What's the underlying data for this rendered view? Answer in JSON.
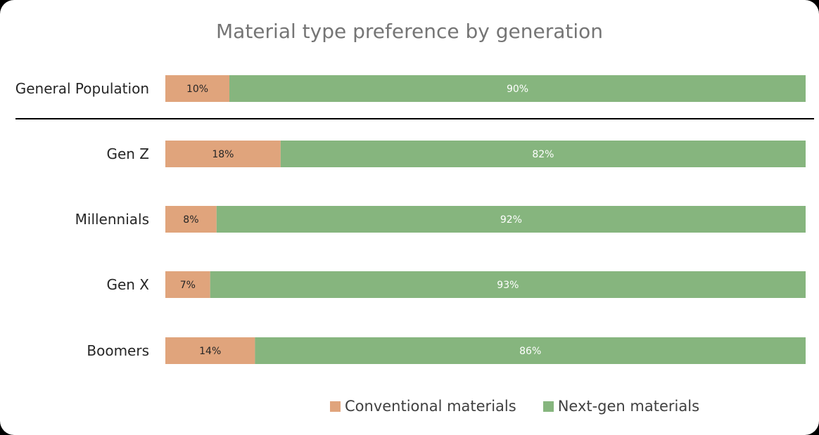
{
  "chart_data": {
    "type": "bar",
    "orientation": "horizontal",
    "stacked": true,
    "title": "Material type preference by generation",
    "categories": [
      "General Population",
      "Gen Z",
      "Millennials",
      "Gen X",
      "Boomers"
    ],
    "series": [
      {
        "name": "Conventional materials",
        "color": "#e0a47c",
        "values": [
          10,
          18,
          8,
          7,
          14
        ],
        "labels": [
          "10%",
          "18%",
          "8%",
          "7%",
          "14%"
        ]
      },
      {
        "name": "Next-gen materials",
        "color": "#86b57e",
        "values": [
          90,
          82,
          92,
          93,
          86
        ],
        "labels": [
          "90%",
          "82%",
          "92%",
          "93%",
          "86%"
        ]
      }
    ],
    "xlim": [
      0,
      100
    ],
    "grid": false,
    "legend_position": "bottom"
  }
}
